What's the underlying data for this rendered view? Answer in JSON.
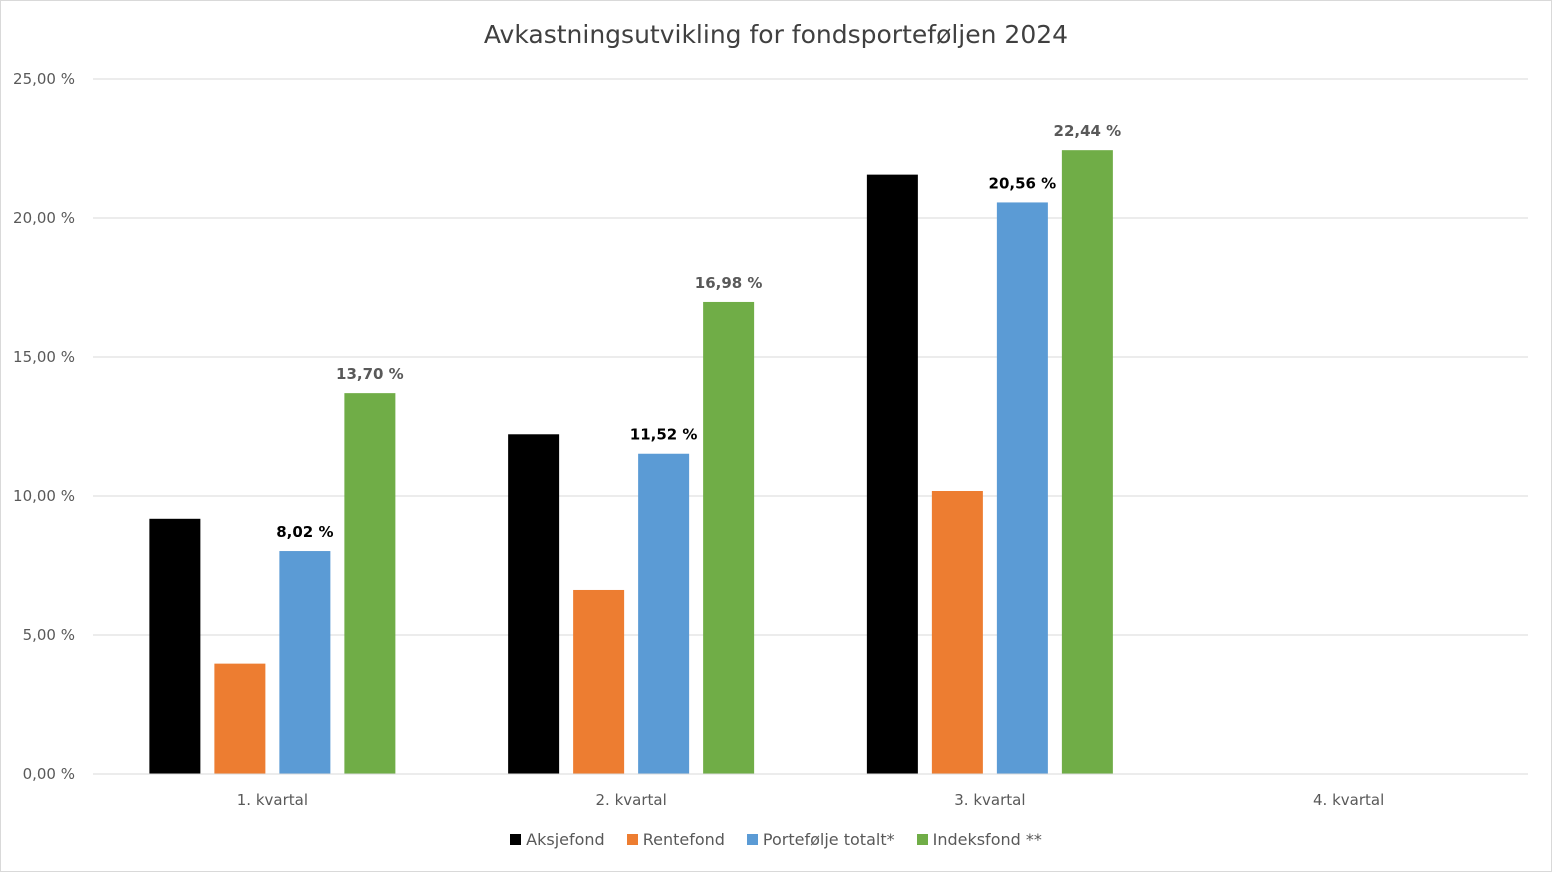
{
  "chart_data": {
    "type": "bar",
    "title": "Avkastningsutvikling for fondsporteføljen 2024",
    "categories": [
      "1. kvartal",
      "2. kvartal",
      "3. kvartal",
      "4. kvartal"
    ],
    "series": [
      {
        "name": "Aksjefond",
        "color": "#000000",
        "values": [
          9.18,
          12.22,
          21.56,
          null
        ],
        "labels": [
          null,
          null,
          null,
          null
        ]
      },
      {
        "name": "Rentefond",
        "color": "#ED7D31",
        "values": [
          3.97,
          6.62,
          10.18,
          null
        ],
        "labels": [
          null,
          null,
          null,
          null
        ]
      },
      {
        "name": "Portefølje totalt*",
        "color": "#5B9BD5",
        "values": [
          8.02,
          11.52,
          20.56,
          null
        ],
        "labels": [
          "8,02 %",
          "11,52 %",
          "20,56 %",
          null
        ],
        "label_color": "#000000"
      },
      {
        "name": "Indeksfond **",
        "color": "#70AD47",
        "values": [
          13.7,
          16.98,
          22.44,
          null
        ],
        "labels": [
          "13,70 %",
          "16,98 %",
          "22,44 %",
          null
        ],
        "label_color": "#595959"
      }
    ],
    "ylim": [
      0,
      25
    ],
    "yticks": [
      0,
      5,
      10,
      15,
      20,
      25
    ],
    "ytick_labels": [
      "0,00 %",
      "5,00 %",
      "10,00 %",
      "15,00 %",
      "20,00 %",
      "25,00 %"
    ],
    "grid": true,
    "legend_position": "bottom"
  }
}
